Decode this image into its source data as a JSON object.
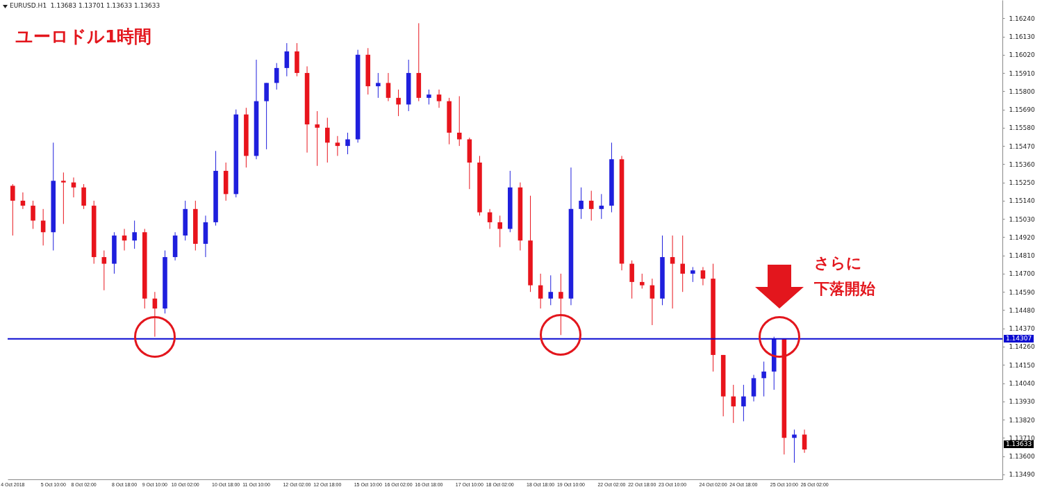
{
  "chart_data": {
    "type": "candlestick",
    "title": "ユーロドル1時間",
    "annotations": [
      "EURUSD.H1  1.13683 1.13701 1.13633 1.13633",
      "1.13633",
      "さらに",
      "下落開始"
    ],
    "categories": [
      "4 Oct 2018",
      null,
      null,
      null,
      "5 Oct 10:00",
      null,
      null,
      "8 Oct 02:00",
      null,
      null,
      null,
      "8 Oct 18:00",
      null,
      null,
      "9 Oct 10:00",
      null,
      null,
      "10 Oct 02:00",
      null,
      null,
      null,
      "10 Oct 18:00",
      null,
      null,
      "11 Oct 10:00",
      null,
      null,
      null,
      "12 Oct 02:00",
      null,
      null,
      "12 Oct 18:00",
      null,
      null,
      null,
      "15 Oct 10:00",
      null,
      null,
      "16 Oct 02:00",
      null,
      null,
      "16 Oct 18:00",
      null,
      null,
      null,
      "17 Oct 10:00",
      null,
      null,
      "18 Oct 02:00",
      null,
      null,
      null,
      "18 Oct 18:00",
      null,
      null,
      "19 Oct 10:00",
      null,
      null,
      null,
      "22 Oct 02:00",
      null,
      null,
      "22 Oct 18:00",
      null,
      null,
      "23 Oct 10:00",
      null,
      null,
      null,
      "24 Oct 02:00",
      null,
      null,
      "24 Oct 18:00",
      null,
      null,
      null,
      "25 Oct 10:00",
      null,
      null,
      "26 Oct 02:00",
      null,
      null,
      null,
      null,
      null,
      null,
      null,
      null,
      null,
      null,
      null,
      null,
      null,
      null,
      null,
      null,
      null,
      null
    ],
    "ohlc": [
      [
        1.1523,
        1.1524,
        1.1493,
        1.1514
      ],
      [
        1.1514,
        1.1519,
        1.1509,
        1.1511
      ],
      [
        1.1511,
        1.1514,
        1.1497,
        1.1502
      ],
      [
        1.1502,
        1.1509,
        1.1487,
        1.1495
      ],
      [
        1.1495,
        1.1549,
        1.1484,
        1.1526
      ],
      [
        1.1526,
        1.1531,
        1.15,
        1.1525
      ],
      [
        1.1525,
        1.1528,
        1.1516,
        1.1522
      ],
      [
        1.1522,
        1.1524,
        1.1509,
        1.1511
      ],
      [
        1.1511,
        1.1514,
        1.1476,
        1.148
      ],
      [
        1.148,
        1.1484,
        1.146,
        1.1476
      ],
      [
        1.1476,
        1.1495,
        1.147,
        1.1493
      ],
      [
        1.1493,
        1.1497,
        1.1484,
        1.149
      ],
      [
        1.149,
        1.1502,
        1.1485,
        1.1495
      ],
      [
        1.1495,
        1.1497,
        1.1449,
        1.1455
      ],
      [
        1.1455,
        1.1459,
        1.1432,
        1.1449
      ],
      [
        1.1449,
        1.1484,
        1.1446,
        1.148
      ],
      [
        1.148,
        1.1495,
        1.1478,
        1.1493
      ],
      [
        1.1493,
        1.1514,
        1.149,
        1.1509
      ],
      [
        1.1509,
        1.1514,
        1.1484,
        1.1488
      ],
      [
        1.1488,
        1.1505,
        1.148,
        1.1501
      ],
      [
        1.1501,
        1.1544,
        1.1499,
        1.1532
      ],
      [
        1.1532,
        1.1537,
        1.1514,
        1.1518
      ],
      [
        1.1518,
        1.1569,
        1.1516,
        1.1566
      ],
      [
        1.1566,
        1.157,
        1.1534,
        1.1541
      ],
      [
        1.1541,
        1.1599,
        1.1539,
        1.1574
      ],
      [
        1.1574,
        1.1585,
        1.1545,
        1.1585
      ],
      [
        1.1585,
        1.1597,
        1.1581,
        1.1594
      ],
      [
        1.1594,
        1.1609,
        1.1589,
        1.1604
      ],
      [
        1.1604,
        1.1609,
        1.1589,
        1.1591
      ],
      [
        1.1591,
        1.1595,
        1.1543,
        1.156
      ],
      [
        1.156,
        1.1568,
        1.1535,
        1.1558
      ],
      [
        1.1558,
        1.1564,
        1.1537,
        1.1549
      ],
      [
        1.1549,
        1.1553,
        1.1541,
        1.1547
      ],
      [
        1.1547,
        1.1555,
        1.1542,
        1.1551
      ],
      [
        1.1551,
        1.1605,
        1.1549,
        1.1602
      ],
      [
        1.1602,
        1.1606,
        1.1578,
        1.1583
      ],
      [
        1.1583,
        1.1591,
        1.1576,
        1.1585
      ],
      [
        1.1585,
        1.1591,
        1.1574,
        1.1576
      ],
      [
        1.1576,
        1.1581,
        1.1565,
        1.1572
      ],
      [
        1.1572,
        1.1599,
        1.1568,
        1.1591
      ],
      [
        1.1591,
        1.1621,
        1.1574,
        1.1576
      ],
      [
        1.1576,
        1.1581,
        1.1572,
        1.1578
      ],
      [
        1.1578,
        1.1581,
        1.157,
        1.1574
      ],
      [
        1.1574,
        1.1576,
        1.1548,
        1.1555
      ],
      [
        1.1555,
        1.1577,
        1.1547,
        1.1551
      ],
      [
        1.1551,
        1.1552,
        1.1521,
        1.1537
      ],
      [
        1.1537,
        1.1541,
        1.1505,
        1.1507
      ],
      [
        1.1507,
        1.1509,
        1.1497,
        1.1501
      ],
      [
        1.1501,
        1.1505,
        1.1486,
        1.1497
      ],
      [
        1.1497,
        1.1532,
        1.1495,
        1.1522
      ],
      [
        1.1522,
        1.1525,
        1.1484,
        1.149
      ],
      [
        1.149,
        1.1517,
        1.1459,
        1.1463
      ],
      [
        1.1463,
        1.147,
        1.1449,
        1.1455
      ],
      [
        1.1455,
        1.1469,
        1.1451,
        1.1459
      ],
      [
        1.1459,
        1.147,
        1.1433,
        1.1455
      ],
      [
        1.1455,
        1.1534,
        1.1451,
        1.1509
      ],
      [
        1.1509,
        1.1522,
        1.1503,
        1.1514
      ],
      [
        1.1514,
        1.152,
        1.1502,
        1.1509
      ],
      [
        1.1509,
        1.1518,
        1.1503,
        1.1511
      ],
      [
        1.1511,
        1.1549,
        1.1507,
        1.1539
      ],
      [
        1.1539,
        1.1541,
        1.1472,
        1.1476
      ],
      [
        1.1476,
        1.1478,
        1.1455,
        1.1465
      ],
      [
        1.1465,
        1.147,
        1.1461,
        1.1463
      ],
      [
        1.1463,
        1.1467,
        1.1439,
        1.1455
      ],
      [
        1.1455,
        1.1493,
        1.1451,
        1.148
      ],
      [
        1.148,
        1.1493,
        1.1449,
        1.1476
      ],
      [
        1.1476,
        1.1493,
        1.1459,
        1.147
      ],
      [
        1.147,
        1.1474,
        1.1465,
        1.1472
      ],
      [
        1.1472,
        1.1474,
        1.1463,
        1.1467
      ],
      [
        1.1467,
        1.1476,
        1.1411,
        1.1421
      ],
      [
        1.1421,
        1.1421,
        1.1384,
        1.1396
      ],
      [
        1.1396,
        1.1403,
        1.138,
        1.139
      ],
      [
        1.139,
        1.1403,
        1.1381,
        1.1396
      ],
      [
        1.1396,
        1.1409,
        1.1393,
        1.1407
      ],
      [
        1.1407,
        1.1417,
        1.1396,
        1.1411
      ],
      [
        1.1411,
        1.1432,
        1.14,
        1.1431
      ],
      [
        1.1431,
        1.1431,
        1.1361,
        1.1371
      ],
      [
        1.1371,
        1.1376,
        1.1356,
        1.1373
      ],
      [
        1.1373,
        1.1376,
        1.1362,
        1.1364
      ],
      null,
      null,
      null,
      null,
      null,
      null,
      null,
      null,
      null,
      null,
      null,
      null,
      null,
      null,
      null,
      null,
      null,
      null,
      null
    ],
    "colors": [
      "#e8141c",
      "#e8141c",
      "#e8141c",
      "#e8141c",
      "#1f1fdd",
      "#e8141c",
      "#e8141c",
      "#e8141c",
      "#e8141c",
      "#e8141c",
      "#1f1fdd",
      "#e8141c",
      "#1f1fdd",
      "#e8141c",
      "#e8141c",
      "#1f1fdd",
      "#1f1fdd",
      "#1f1fdd",
      "#e8141c",
      "#1f1fdd",
      "#1f1fdd",
      "#e8141c",
      "#1f1fdd",
      "#e8141c",
      "#1f1fdd",
      "#1f1fdd",
      "#1f1fdd",
      "#1f1fdd",
      "#e8141c",
      "#e8141c",
      "#e8141c",
      "#e8141c",
      "#e8141c",
      "#1f1fdd",
      "#1f1fdd",
      "#e8141c",
      "#1f1fdd",
      "#e8141c",
      "#e8141c",
      "#1f1fdd",
      "#e8141c",
      "#1f1fdd",
      "#e8141c",
      "#e8141c",
      "#e8141c",
      "#e8141c",
      "#e8141c",
      "#e8141c",
      "#e8141c",
      "#1f1fdd",
      "#e8141c",
      "#e8141c",
      "#e8141c",
      "#1f1fdd",
      "#e8141c",
      "#1f1fdd",
      "#1f1fdd",
      "#e8141c",
      "#1f1fdd",
      "#1f1fdd",
      "#e8141c",
      "#e8141c",
      "#e8141c",
      "#e8141c",
      "#1f1fdd",
      "#e8141c",
      "#e8141c",
      "#1f1fdd",
      "#e8141c",
      "#e8141c",
      "#e8141c",
      "#e8141c",
      "#1f1fdd",
      "#1f1fdd",
      "#1f1fdd",
      "#1f1fdd",
      "#e8141c",
      "#1f1fdd",
      "#e8141c",
      null,
      null,
      null,
      null,
      null,
      null,
      null,
      null,
      null,
      null,
      null,
      null,
      null,
      null,
      null,
      null,
      null,
      null,
      null
    ],
    "ylim": [
      1.1346,
      1.1635
    ],
    "yticks": [
      {
        "value": 1.1349,
        "label": "1.13490"
      },
      {
        "value": 1.136,
        "label": "1.13600"
      },
      {
        "value": 1.1371,
        "label": "1.13710"
      },
      {
        "value": 1.1382,
        "label": "1.13820"
      },
      {
        "value": 1.1393,
        "label": "1.13930"
      },
      {
        "value": 1.1404,
        "label": "1.14040"
      },
      {
        "value": 1.1415,
        "label": "1.14150"
      },
      {
        "value": 1.1426,
        "label": "1.14260"
      },
      {
        "value": 1.1437,
        "label": "1.14370"
      },
      {
        "value": 1.1448,
        "label": "1.14480"
      },
      {
        "value": 1.1459,
        "label": "1.14590"
      },
      {
        "value": 1.147,
        "label": "1.14700"
      },
      {
        "value": 1.1481,
        "label": "1.14810"
      },
      {
        "value": 1.1492,
        "label": "1.14920"
      },
      {
        "value": 1.1503,
        "label": "1.15030"
      },
      {
        "value": 1.1514,
        "label": "1.15140"
      },
      {
        "value": 1.1525,
        "label": "1.15250"
      },
      {
        "value": 1.1536,
        "label": "1.15360"
      },
      {
        "value": 1.1547,
        "label": "1.15470"
      },
      {
        "value": 1.1558,
        "label": "1.15580"
      },
      {
        "value": 1.1569,
        "label": "1.15690"
      },
      {
        "value": 1.158,
        "label": "1.15800"
      },
      {
        "value": 1.1591,
        "label": "1.15910"
      },
      {
        "value": 1.1602,
        "label": "1.16020"
      },
      {
        "value": 1.1613,
        "label": "1.16130"
      },
      {
        "value": 1.1624,
        "label": "1.16240"
      }
    ],
    "ref_lines": [
      {
        "axis": "y",
        "value": 1.14307,
        "label": "1.14307",
        "color": "#0a0ad0"
      }
    ]
  }
}
